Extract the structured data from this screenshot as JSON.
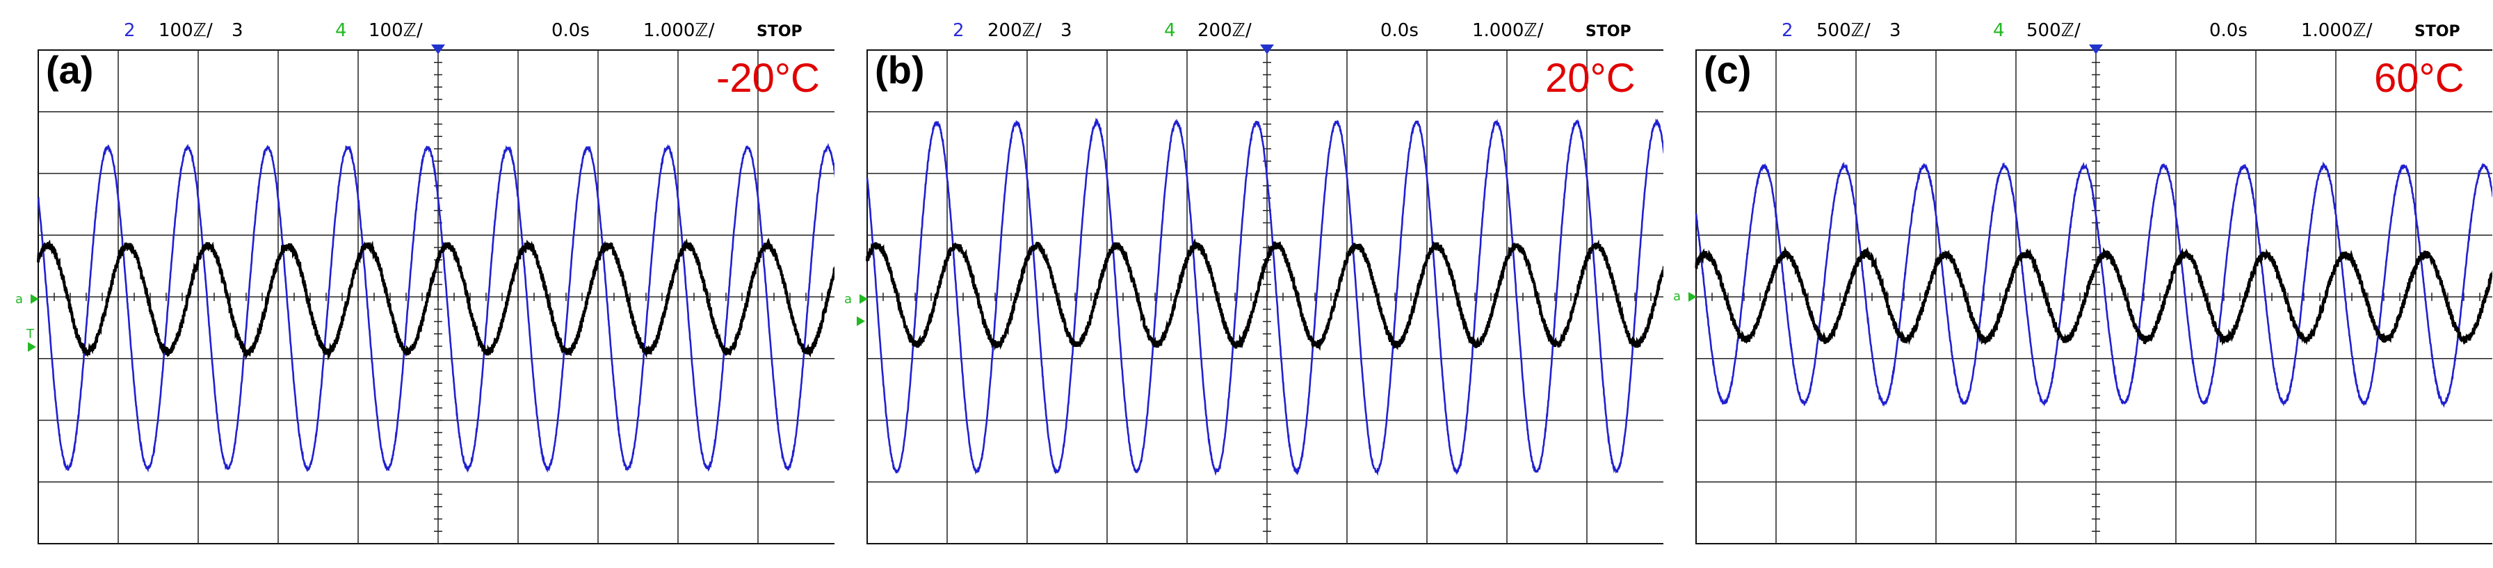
{
  "figure": {
    "panels": [
      {
        "panel_label": "(a)",
        "temperature_label": "-20°C",
        "header": {
          "ch2_num": "2",
          "ch2_scale": "100ℤ/",
          "ch3_num": "3",
          "ch4_num": "4",
          "ch4_scale": "100ℤ/",
          "time_offset": "0.0s",
          "time_scale": "1.000ℤ/",
          "status": "STOP"
        }
      },
      {
        "panel_label": "(b)",
        "temperature_label": "20°C",
        "header": {
          "ch2_num": "2",
          "ch2_scale": "200ℤ/",
          "ch3_num": "3",
          "ch4_num": "4",
          "ch4_scale": "200ℤ/",
          "time_offset": "0.0s",
          "time_scale": "1.000ℤ/",
          "status": "STOP"
        }
      },
      {
        "panel_label": "(c)",
        "temperature_label": "60°C",
        "header": {
          "ch2_num": "2",
          "ch2_scale": "500ℤ/",
          "ch3_num": "3",
          "ch4_num": "4",
          "ch4_scale": "500ℤ/",
          "time_offset": "0.0s",
          "time_scale": "1.000ℤ/",
          "status": "STOP"
        }
      }
    ]
  },
  "chart_data": [
    {
      "type": "line",
      "title": "-20°C",
      "x_divisions": 10,
      "y_divisions": 8,
      "grid": true,
      "x_range_div": [
        0,
        10
      ],
      "y_range_div": [
        -4,
        4
      ],
      "series": [
        {
          "color": "#2020d0",
          "cycles": 10,
          "amplitude_div": 2.6,
          "offset_div": -0.18,
          "phase_cycles": 0.38
        },
        {
          "color": "#000000",
          "cycles": 10,
          "amplitude_div": 0.86,
          "offset_div": -0.03,
          "phase_cycles": 0.13
        }
      ]
    },
    {
      "type": "line",
      "title": "20°C",
      "x_divisions": 10,
      "y_divisions": 8,
      "grid": true,
      "x_range_div": [
        0,
        10
      ],
      "y_range_div": [
        -4,
        4
      ],
      "series": [
        {
          "color": "#2020d0",
          "cycles": 10,
          "amplitude_div": 2.83,
          "offset_div": 0.0,
          "phase_cycles": 0.38
        },
        {
          "color": "#000000",
          "cycles": 10,
          "amplitude_div": 0.8,
          "offset_div": 0.03,
          "phase_cycles": 0.13
        }
      ]
    },
    {
      "type": "line",
      "title": "60°C",
      "x_divisions": 10,
      "y_divisions": 8,
      "grid": true,
      "x_range_div": [
        0,
        10
      ],
      "y_range_div": [
        -4,
        4
      ],
      "series": [
        {
          "color": "#2020d0",
          "cycles": 10,
          "amplitude_div": 1.92,
          "offset_div": 0.2,
          "phase_cycles": 0.4
        },
        {
          "color": "#000000",
          "cycles": 10,
          "amplitude_div": 0.69,
          "offset_div": 0.0,
          "phase_cycles": 0.13
        }
      ]
    }
  ]
}
